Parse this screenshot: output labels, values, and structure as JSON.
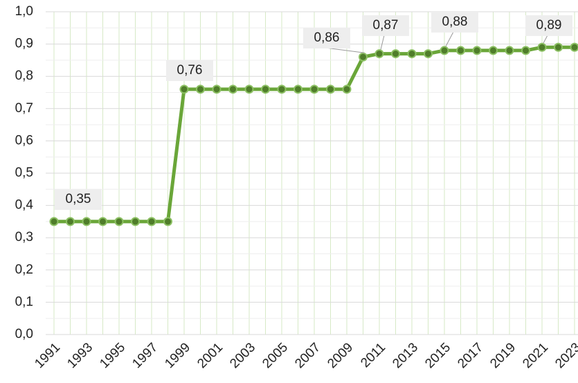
{
  "chart_data": {
    "type": "line",
    "categories": [
      "1991",
      null,
      "1993",
      null,
      "1995",
      null,
      "1997",
      null,
      "1999",
      null,
      "2001",
      null,
      "2003",
      null,
      "2005",
      null,
      "2007",
      null,
      "2009",
      null,
      "2011",
      null,
      "2013",
      null,
      "2015",
      null,
      "2017",
      null,
      "2019",
      null,
      "2021",
      null,
      "2023"
    ],
    "series": [
      {
        "name": null,
        "color": "#6aa639",
        "values": [
          0.35,
          0.35,
          0.35,
          0.35,
          0.35,
          0.35,
          0.35,
          0.35,
          0.76,
          0.76,
          0.76,
          0.76,
          0.76,
          0.76,
          0.76,
          0.76,
          0.76,
          0.76,
          0.76,
          0.86,
          0.87,
          0.87,
          0.87,
          0.87,
          0.88,
          0.88,
          0.88,
          0.88,
          0.88,
          0.88,
          0.89,
          0.89,
          0.89
        ],
        "value_labels": [
          null,
          "0,35",
          null,
          null,
          null,
          null,
          null,
          null,
          "0,76",
          null,
          null,
          null,
          null,
          null,
          null,
          null,
          null,
          null,
          null,
          "0,86",
          "0,87",
          null,
          null,
          null,
          "0,88",
          null,
          null,
          null,
          null,
          null,
          "0,89",
          null,
          null
        ]
      }
    ],
    "ylim": [
      0,
      1
    ],
    "yticks": [
      {
        "value": 0,
        "label": "0,0"
      },
      {
        "value": 0.1,
        "label": "0,1"
      },
      {
        "value": 0.2,
        "label": "0,2"
      },
      {
        "value": 0.3,
        "label": "0,3"
      },
      {
        "value": 0.4,
        "label": "0,4"
      },
      {
        "value": 0.5,
        "label": "0,5"
      },
      {
        "value": 0.6,
        "label": "0,6"
      },
      {
        "value": 0.7,
        "label": "0,7"
      },
      {
        "value": 0.8,
        "label": "0,8"
      },
      {
        "value": 0.9,
        "label": "0,9"
      },
      {
        "value": 1,
        "label": "1,0"
      }
    ],
    "grid": true
  }
}
